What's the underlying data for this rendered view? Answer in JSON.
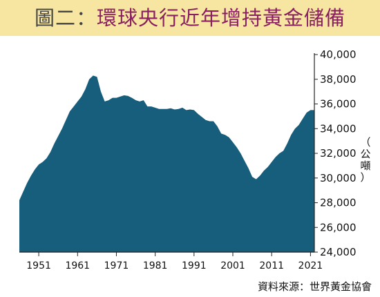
{
  "title_prefix": "圖二：",
  "title_main": "環球央行近年增持黃金儲備",
  "source": "資料來源：世界黃金協會",
  "chart_data": {
    "type": "area",
    "title": "圖二：環球央行近年增持黃金儲備",
    "ylabel": "（公噸）",
    "xlabel": "",
    "ylim": [
      24000,
      40000
    ],
    "xlim": [
      1946,
      2022
    ],
    "yticks": [
      "24,000",
      "26,000",
      "28,000",
      "30,000",
      "32,000",
      "34,000",
      "36,000",
      "38,000",
      "40,000"
    ],
    "ytick_values": [
      24000,
      26000,
      28000,
      30000,
      32000,
      34000,
      36000,
      38000,
      40000
    ],
    "xticks": [
      "1951",
      "1961",
      "1971",
      "1981",
      "1991",
      "2001",
      "2011",
      "2021"
    ],
    "xtick_values": [
      1951,
      1961,
      1971,
      1981,
      1991,
      2001,
      2011,
      2021
    ],
    "fill_color": "#175d7c",
    "grid": false,
    "series": [
      {
        "x": [
          1946,
          1947,
          1948,
          1949,
          1950,
          1951,
          1952,
          1953,
          1954,
          1955,
          1956,
          1957,
          1958,
          1959,
          1960,
          1961,
          1962,
          1963,
          1964,
          1965,
          1966,
          1967,
          1968,
          1969,
          1970,
          1971,
          1972,
          1973,
          1974,
          1975,
          1976,
          1977,
          1978,
          1979,
          1980,
          1981,
          1982,
          1983,
          1984,
          1985,
          1986,
          1987,
          1988,
          1989,
          1990,
          1991,
          1992,
          1993,
          1994,
          1995,
          1996,
          1997,
          1998,
          1999,
          2000,
          2001,
          2002,
          2003,
          2004,
          2005,
          2006,
          2007,
          2008,
          2009,
          2010,
          2011,
          2012,
          2013,
          2014,
          2015,
          2016,
          2017,
          2018,
          2019,
          2020,
          2021,
          2022
        ],
        "values": [
          28200,
          28900,
          29600,
          30200,
          30700,
          31100,
          31300,
          31600,
          32100,
          32800,
          33400,
          34000,
          34700,
          35400,
          35800,
          36200,
          36600,
          37200,
          38000,
          38300,
          38200,
          37000,
          36200,
          36300,
          36500,
          36500,
          36600,
          36700,
          36650,
          36500,
          36300,
          36200,
          36300,
          35800,
          35800,
          35700,
          35600,
          35600,
          35600,
          35650,
          35550,
          35600,
          35700,
          35500,
          35550,
          35500,
          35200,
          34950,
          34700,
          34600,
          34600,
          34200,
          33600,
          33500,
          33300,
          32900,
          32500,
          32000,
          31400,
          30800,
          30100,
          29900,
          30200,
          30600,
          30900,
          31300,
          31700,
          32000,
          32200,
          32800,
          33500,
          34000,
          34300,
          34800,
          35300,
          35500,
          35500
        ]
      }
    ]
  }
}
